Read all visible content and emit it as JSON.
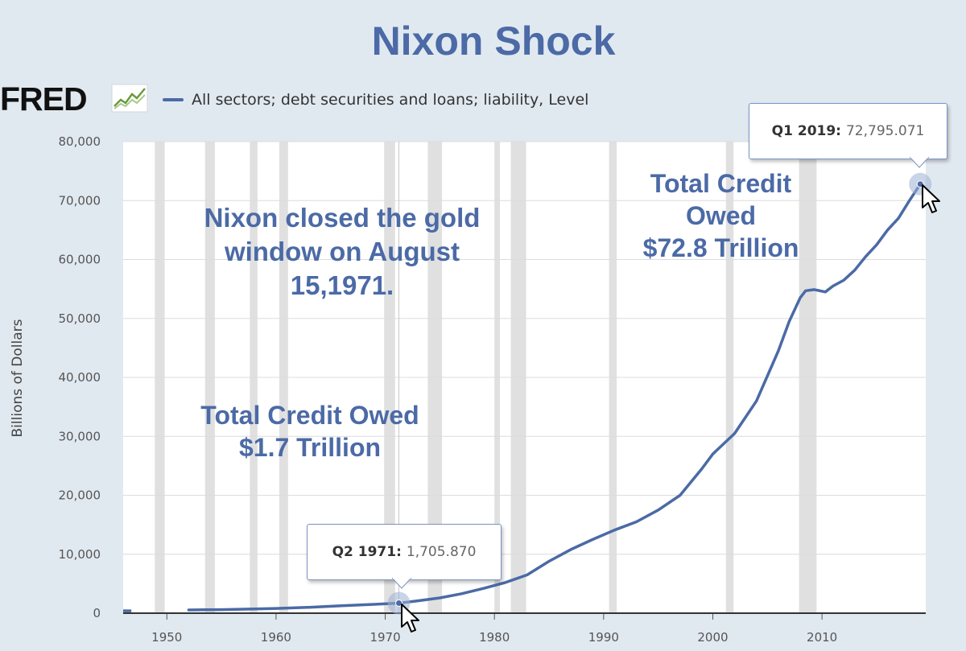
{
  "title": "Nixon Shock",
  "logo": {
    "text": "FRED",
    "icon": "fred-chart-icon"
  },
  "legend": {
    "label": "All sectors; debt securities and loans; liability, Level"
  },
  "annotations": {
    "gold_window": [
      "Nixon closed the gold",
      "window on August",
      "15,1971."
    ],
    "credit_1971": [
      "Total Credit Owed",
      "$1.7 Trillion"
    ],
    "credit_2019": [
      "Total Credit",
      "Owed",
      "$72.8 Trillion"
    ]
  },
  "tooltips": {
    "q2_1971": {
      "label": "Q2 1971:",
      "value": "1,705.870"
    },
    "q1_2019": {
      "label": "Q1 2019:",
      "value": "72,795.071"
    }
  },
  "colors": {
    "line": "#4b6aa6",
    "background": "#e1e9f0",
    "plot": "#ffffff",
    "recession": "#e0e0e0"
  },
  "chart_data": {
    "type": "line",
    "ylabel": "Billions of Dollars",
    "xlim": [
      1946,
      2019.5
    ],
    "ylim": [
      0,
      80000
    ],
    "x_ticks": [
      1950,
      1960,
      1970,
      1980,
      1990,
      2000,
      2010
    ],
    "y_ticks": [
      0,
      10000,
      20000,
      30000,
      40000,
      50000,
      60000,
      70000,
      80000
    ],
    "y_tick_labels": [
      "0",
      "10,000",
      "20,000",
      "30,000",
      "40,000",
      "50,000",
      "60,000",
      "70,000",
      "80,000"
    ],
    "recessions": [
      [
        1948.9,
        1949.8
      ],
      [
        1953.5,
        1954.4
      ],
      [
        1957.6,
        1958.3
      ],
      [
        1960.3,
        1961.1
      ],
      [
        1969.9,
        1970.9
      ],
      [
        1973.9,
        1975.2
      ],
      [
        1980.0,
        1980.5
      ],
      [
        1981.5,
        1982.9
      ],
      [
        1990.5,
        1991.2
      ],
      [
        2001.2,
        2001.9
      ],
      [
        2007.9,
        2009.5
      ]
    ],
    "series": [
      {
        "values_segment_1": [
          [
            1946.0,
            400
          ],
          [
            1946.75,
            400
          ]
        ],
        "values": [
          [
            1952.0,
            550
          ],
          [
            1955,
            600
          ],
          [
            1958,
            720
          ],
          [
            1960,
            800
          ],
          [
            1963,
            1000
          ],
          [
            1966,
            1250
          ],
          [
            1969,
            1500
          ],
          [
            1971.25,
            1706
          ],
          [
            1973,
            2100
          ],
          [
            1975,
            2600
          ],
          [
            1977,
            3300
          ],
          [
            1979,
            4200
          ],
          [
            1981,
            5200
          ],
          [
            1983,
            6500
          ],
          [
            1985,
            8800
          ],
          [
            1987,
            10800
          ],
          [
            1989,
            12500
          ],
          [
            1991,
            14100
          ],
          [
            1993,
            15500
          ],
          [
            1995,
            17500
          ],
          [
            1997,
            20000
          ],
          [
            1999,
            24500
          ],
          [
            2000,
            27000
          ],
          [
            2002,
            30500
          ],
          [
            2004,
            36000
          ],
          [
            2006,
            44500
          ],
          [
            2007,
            49500
          ],
          [
            2008,
            53500
          ],
          [
            2008.5,
            54700
          ],
          [
            2009.3,
            54900
          ],
          [
            2010.3,
            54500
          ],
          [
            2011,
            55500
          ],
          [
            2012,
            56500
          ],
          [
            2013,
            58200
          ],
          [
            2014,
            60500
          ],
          [
            2015,
            62500
          ],
          [
            2016,
            65000
          ],
          [
            2017,
            67000
          ],
          [
            2018,
            70000
          ],
          [
            2019.0,
            72795
          ]
        ]
      }
    ],
    "highlight_points": [
      [
        1971.25,
        1706
      ],
      [
        2019.0,
        72795
      ]
    ]
  }
}
